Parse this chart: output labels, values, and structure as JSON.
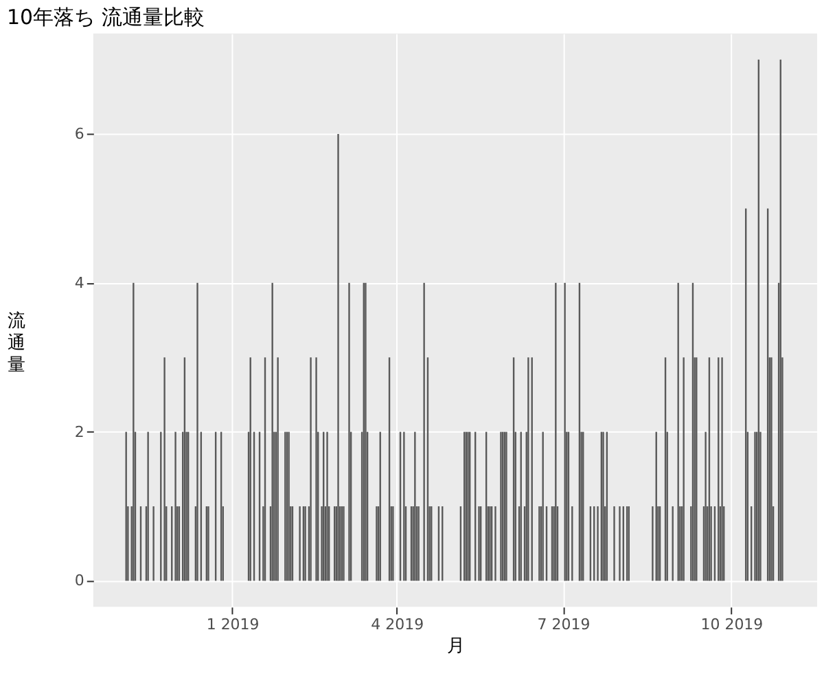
{
  "chart_data": {
    "type": "bar",
    "title": "10年落ち 流通量比較",
    "xlabel": "月",
    "ylabel": "流通量",
    "color": "#595959",
    "x": [
      "2018-11-04",
      "2018-11-05",
      "2018-11-07",
      "2018-11-08",
      "2018-11-09",
      "2018-11-12",
      "2018-11-15",
      "2018-11-16",
      "2018-11-19",
      "2018-11-23",
      "2018-11-25",
      "2018-11-26",
      "2018-11-29",
      "2018-12-01",
      "2018-12-02",
      "2018-12-03",
      "2018-12-05",
      "2018-12-06",
      "2018-12-07",
      "2018-12-08",
      "2018-12-12",
      "2018-12-13",
      "2018-12-15",
      "2018-12-18",
      "2018-12-19",
      "2018-12-23",
      "2018-12-26",
      "2018-12-27",
      "2019-01-10",
      "2019-01-11",
      "2019-01-13",
      "2019-01-16",
      "2019-01-18",
      "2019-01-19",
      "2019-01-22",
      "2019-01-23",
      "2019-01-24",
      "2019-01-25",
      "2019-01-26",
      "2019-01-30",
      "2019-01-31",
      "2019-02-01",
      "2019-02-02",
      "2019-02-03",
      "2019-02-07",
      "2019-02-09",
      "2019-02-10",
      "2019-02-12",
      "2019-02-13",
      "2019-02-16",
      "2019-02-17",
      "2019-02-19",
      "2019-02-20",
      "2019-02-21",
      "2019-02-22",
      "2019-02-23",
      "2019-02-26",
      "2019-02-27",
      "2019-02-28",
      "2019-03-01",
      "2019-03-02",
      "2019-03-03",
      "2019-03-06",
      "2019-03-07",
      "2019-03-13",
      "2019-03-14",
      "2019-03-15",
      "2019-03-16",
      "2019-03-21",
      "2019-03-22",
      "2019-03-23",
      "2019-03-28",
      "2019-03-29",
      "2019-03-30",
      "2019-04-03",
      "2019-04-05",
      "2019-04-06",
      "2019-04-09",
      "2019-04-10",
      "2019-04-11",
      "2019-04-12",
      "2019-04-13",
      "2019-04-16",
      "2019-04-18",
      "2019-04-19",
      "2019-04-20",
      "2019-04-24",
      "2019-04-26",
      "2019-05-06",
      "2019-05-08",
      "2019-05-09",
      "2019-05-10",
      "2019-05-11",
      "2019-05-14",
      "2019-05-16",
      "2019-05-17",
      "2019-05-20",
      "2019-05-21",
      "2019-05-22",
      "2019-05-23",
      "2019-05-25",
      "2019-05-28",
      "2019-05-29",
      "2019-05-30",
      "2019-05-31",
      "2019-06-04",
      "2019-06-05",
      "2019-06-07",
      "2019-06-08",
      "2019-06-10",
      "2019-06-11",
      "2019-06-12",
      "2019-06-14",
      "2019-06-18",
      "2019-06-19",
      "2019-06-20",
      "2019-06-22",
      "2019-06-25",
      "2019-06-26",
      "2019-06-27",
      "2019-06-28",
      "2019-07-02",
      "2019-07-03",
      "2019-07-04",
      "2019-07-06",
      "2019-07-10",
      "2019-07-11",
      "2019-07-12",
      "2019-07-16",
      "2019-07-18",
      "2019-07-20",
      "2019-07-22",
      "2019-07-23",
      "2019-07-24",
      "2019-07-25",
      "2019-07-29",
      "2019-08-01",
      "2019-08-03",
      "2019-08-05",
      "2019-08-06",
      "2019-08-19",
      "2019-08-21",
      "2019-08-22",
      "2019-08-23",
      "2019-08-26",
      "2019-08-27",
      "2019-08-30",
      "2019-09-02",
      "2019-09-03",
      "2019-09-04",
      "2019-09-05",
      "2019-09-09",
      "2019-09-10",
      "2019-09-11",
      "2019-09-12",
      "2019-09-16",
      "2019-09-17",
      "2019-09-18",
      "2019-09-19",
      "2019-09-20",
      "2019-09-22",
      "2019-09-24",
      "2019-09-25",
      "2019-09-26",
      "2019-09-27",
      "2019-10-09",
      "2019-10-10",
      "2019-10-12",
      "2019-10-14",
      "2019-10-15",
      "2019-10-16",
      "2019-10-17",
      "2019-10-21",
      "2019-10-22",
      "2019-10-23",
      "2019-10-24",
      "2019-10-27",
      "2019-10-28",
      "2019-10-29"
    ],
    "values": [
      2,
      1,
      1,
      4,
      2,
      1,
      1,
      2,
      1,
      2,
      3,
      1,
      1,
      2,
      1,
      1,
      2,
      3,
      2,
      2,
      1,
      4,
      2,
      1,
      1,
      2,
      2,
      1,
      2,
      3,
      2,
      2,
      1,
      3,
      1,
      4,
      2,
      2,
      3,
      2,
      2,
      2,
      1,
      1,
      1,
      1,
      1,
      1,
      3,
      3,
      2,
      1,
      2,
      1,
      2,
      1,
      1,
      1,
      6,
      1,
      1,
      1,
      4,
      2,
      2,
      4,
      4,
      2,
      1,
      1,
      2,
      3,
      1,
      1,
      2,
      2,
      1,
      1,
      1,
      2,
      1,
      1,
      4,
      3,
      1,
      1,
      1,
      1,
      1,
      2,
      2,
      2,
      2,
      2,
      1,
      1,
      2,
      1,
      1,
      1,
      1,
      2,
      2,
      2,
      2,
      3,
      2,
      1,
      2,
      1,
      2,
      3,
      3,
      1,
      1,
      2,
      1,
      1,
      1,
      4,
      1,
      4,
      2,
      2,
      1,
      4,
      2,
      2,
      1,
      1,
      1,
      2,
      2,
      1,
      2,
      1,
      1,
      1,
      1,
      1,
      1,
      2,
      1,
      1,
      3,
      2,
      1,
      4,
      1,
      1,
      3,
      1,
      4,
      3,
      3,
      1,
      2,
      1,
      3,
      1,
      1,
      3,
      1,
      3,
      1,
      5,
      2,
      1,
      2,
      2,
      7,
      2,
      5,
      3,
      3,
      1,
      4,
      7,
      3
    ],
    "xlim": [
      "2018-10-17",
      "2019-11-17"
    ],
    "xticks": [
      {
        "value": "2019-01-01",
        "label": "1 2019"
      },
      {
        "value": "2019-04-01",
        "label": "4 2019"
      },
      {
        "value": "2019-07-01",
        "label": "7 2019"
      },
      {
        "value": "2019-10-01",
        "label": "10 2019"
      }
    ],
    "ylim": [
      -0.35,
      7.35
    ],
    "yticks": [
      0,
      2,
      4,
      6
    ],
    "grid": true
  }
}
